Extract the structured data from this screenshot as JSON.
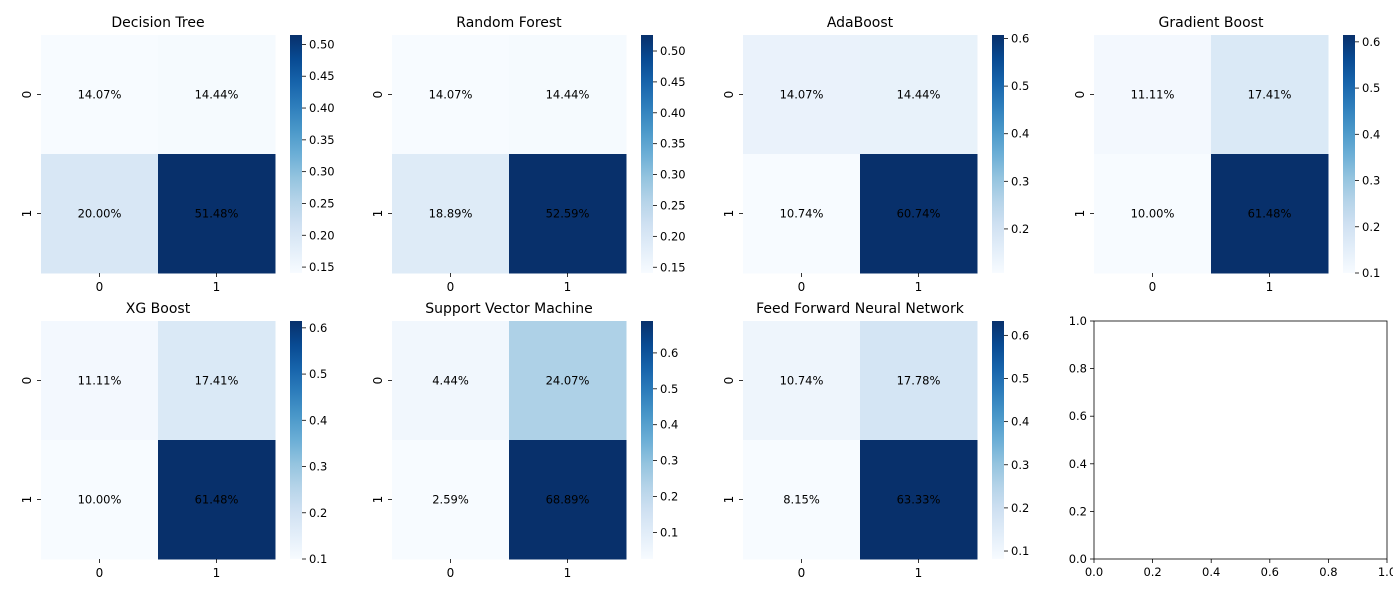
{
  "chart_data": [
    {
      "type": "heatmap",
      "title": "Decision Tree",
      "xticklabels": [
        "0",
        "1"
      ],
      "yticklabels": [
        "0",
        "1"
      ],
      "values": [
        [
          0.1407,
          0.1444
        ],
        [
          0.2,
          0.5148
        ]
      ],
      "annotations": [
        [
          "14.07%",
          "14.44%"
        ],
        [
          "20.00%",
          "51.48%"
        ]
      ],
      "colorbar": {
        "min": 0.1407,
        "max": 0.5148,
        "ticks": [
          "0.15",
          "0.20",
          "0.25",
          "0.30",
          "0.35",
          "0.40",
          "0.45",
          "0.50"
        ]
      },
      "colormap": "Blues"
    },
    {
      "type": "heatmap",
      "title": "Random Forest",
      "xticklabels": [
        "0",
        "1"
      ],
      "yticklabels": [
        "0",
        "1"
      ],
      "values": [
        [
          0.1407,
          0.1444
        ],
        [
          0.1889,
          0.5259
        ]
      ],
      "annotations": [
        [
          "14.07%",
          "14.44%"
        ],
        [
          "18.89%",
          "52.59%"
        ]
      ],
      "colorbar": {
        "min": 0.1407,
        "max": 0.5259,
        "ticks": [
          "0.15",
          "0.20",
          "0.25",
          "0.30",
          "0.35",
          "0.40",
          "0.45",
          "0.50"
        ]
      },
      "colormap": "Blues"
    },
    {
      "type": "heatmap",
      "title": "AdaBoost",
      "xticklabels": [
        "0",
        "1"
      ],
      "yticklabels": [
        "0",
        "1"
      ],
      "values": [
        [
          0.1407,
          0.1444
        ],
        [
          0.1074,
          0.6074
        ]
      ],
      "annotations": [
        [
          "14.07%",
          "14.44%"
        ],
        [
          "10.74%",
          "60.74%"
        ]
      ],
      "colorbar": {
        "min": 0.1074,
        "max": 0.6074,
        "ticks": [
          "0.2",
          "0.3",
          "0.4",
          "0.5",
          "0.6"
        ]
      },
      "colormap": "Blues"
    },
    {
      "type": "heatmap",
      "title": "Gradient Boost",
      "xticklabels": [
        "0",
        "1"
      ],
      "yticklabels": [
        "0",
        "1"
      ],
      "values": [
        [
          0.1111,
          0.1741
        ],
        [
          0.1,
          0.6148
        ]
      ],
      "annotations": [
        [
          "11.11%",
          "17.41%"
        ],
        [
          "10.00%",
          "61.48%"
        ]
      ],
      "colorbar": {
        "min": 0.1,
        "max": 0.6148,
        "ticks": [
          "0.1",
          "0.2",
          "0.3",
          "0.4",
          "0.5",
          "0.6"
        ]
      },
      "colormap": "Blues"
    },
    {
      "type": "heatmap",
      "title": "XG Boost",
      "xticklabels": [
        "0",
        "1"
      ],
      "yticklabels": [
        "0",
        "1"
      ],
      "values": [
        [
          0.1111,
          0.1741
        ],
        [
          0.1,
          0.6148
        ]
      ],
      "annotations": [
        [
          "11.11%",
          "17.41%"
        ],
        [
          "10.00%",
          "61.48%"
        ]
      ],
      "colorbar": {
        "min": 0.1,
        "max": 0.6148,
        "ticks": [
          "0.1",
          "0.2",
          "0.3",
          "0.4",
          "0.5",
          "0.6"
        ]
      },
      "colormap": "Blues"
    },
    {
      "type": "heatmap",
      "title": "Support Vector Machine",
      "xticklabels": [
        "0",
        "1"
      ],
      "yticklabels": [
        "0",
        "1"
      ],
      "values": [
        [
          0.0444,
          0.2407
        ],
        [
          0.0259,
          0.6889
        ]
      ],
      "annotations": [
        [
          "4.44%",
          "24.07%"
        ],
        [
          "2.59%",
          "68.89%"
        ]
      ],
      "colorbar": {
        "min": 0.0259,
        "max": 0.6889,
        "ticks": [
          "0.1",
          "0.2",
          "0.3",
          "0.4",
          "0.5",
          "0.6"
        ]
      },
      "colormap": "Blues"
    },
    {
      "type": "heatmap",
      "title": "Feed Forward Neural Network",
      "xticklabels": [
        "0",
        "1"
      ],
      "yticklabels": [
        "0",
        "1"
      ],
      "values": [
        [
          0.1074,
          0.1778
        ],
        [
          0.0815,
          0.6333
        ]
      ],
      "annotations": [
        [
          "10.74%",
          "17.78%"
        ],
        [
          "8.15%",
          "63.33%"
        ]
      ],
      "colorbar": {
        "min": 0.0815,
        "max": 0.6333,
        "ticks": [
          "0.1",
          "0.2",
          "0.3",
          "0.4",
          "0.5",
          "0.6"
        ]
      },
      "colormap": "Blues"
    },
    {
      "type": "empty-axes",
      "xlim": [
        0.0,
        1.0
      ],
      "ylim": [
        0.0,
        1.0
      ],
      "xticklabels": [
        "0.0",
        "0.2",
        "0.4",
        "0.6",
        "0.8",
        "1.0"
      ],
      "yticklabels": [
        "0.0",
        "0.2",
        "0.4",
        "0.6",
        "0.8",
        "1.0"
      ]
    }
  ]
}
